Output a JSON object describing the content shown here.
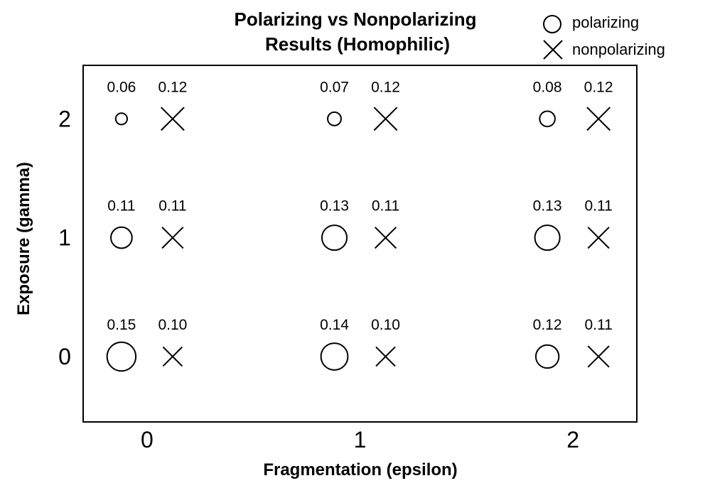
{
  "chart_data": {
    "type": "scatter",
    "title": "Polarizing vs Nonpolarizing Results (Homophilic)",
    "title_lines": [
      "Polarizing vs Nonpolarizing",
      "Results (Homophilic)"
    ],
    "xlabel": "Fragmentation (epsilon)",
    "ylabel": "Exposure (gamma)",
    "x_ticks": [
      "0",
      "1",
      "2"
    ],
    "y_ticks": [
      "0",
      "1",
      "2"
    ],
    "xlim": [
      -0.3,
      2.3
    ],
    "ylim": [
      -0.55,
      2.45
    ],
    "grid": false,
    "legend_position": "top-right",
    "series": [
      {
        "name": "polarizing",
        "marker": "circle",
        "points": [
          {
            "x": 0,
            "y": 2,
            "value": 0.06,
            "label": "0.06"
          },
          {
            "x": 1,
            "y": 2,
            "value": 0.07,
            "label": "0.07"
          },
          {
            "x": 2,
            "y": 2,
            "value": 0.08,
            "label": "0.08"
          },
          {
            "x": 0,
            "y": 1,
            "value": 0.11,
            "label": "0.11"
          },
          {
            "x": 1,
            "y": 1,
            "value": 0.13,
            "label": "0.13"
          },
          {
            "x": 2,
            "y": 1,
            "value": 0.13,
            "label": "0.13"
          },
          {
            "x": 0,
            "y": 0,
            "value": 0.15,
            "label": "0.15"
          },
          {
            "x": 1,
            "y": 0,
            "value": 0.14,
            "label": "0.14"
          },
          {
            "x": 2,
            "y": 0,
            "value": 0.12,
            "label": "0.12"
          }
        ]
      },
      {
        "name": "nonpolarizing",
        "marker": "x",
        "points": [
          {
            "x": 0,
            "y": 2,
            "value": 0.12,
            "label": "0.12"
          },
          {
            "x": 1,
            "y": 2,
            "value": 0.12,
            "label": "0.12"
          },
          {
            "x": 2,
            "y": 2,
            "value": 0.12,
            "label": "0.12"
          },
          {
            "x": 0,
            "y": 1,
            "value": 0.11,
            "label": "0.11"
          },
          {
            "x": 1,
            "y": 1,
            "value": 0.11,
            "label": "0.11"
          },
          {
            "x": 2,
            "y": 1,
            "value": 0.11,
            "label": "0.11"
          },
          {
            "x": 0,
            "y": 0,
            "value": 0.1,
            "label": "0.10"
          },
          {
            "x": 1,
            "y": 0,
            "value": 0.1,
            "label": "0.10"
          },
          {
            "x": 2,
            "y": 0,
            "value": 0.11,
            "label": "0.11"
          }
        ]
      }
    ]
  }
}
